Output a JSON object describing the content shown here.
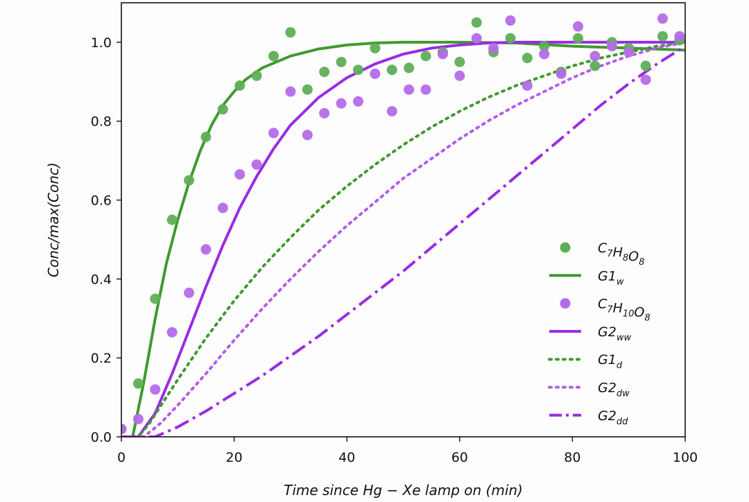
{
  "chart_data": {
    "type": "scatter",
    "xlabel": "Time since Hg − Xe lamp on (min)",
    "ylabel": "Conc/max(Conc)",
    "xlim": [
      0,
      100
    ],
    "ylim": [
      0,
      1.1
    ],
    "xticks": [
      "0",
      "20",
      "40",
      "60",
      "80",
      "100"
    ],
    "yticks": [
      "0.0",
      "0.2",
      "0.4",
      "0.6",
      "0.8",
      "1.0"
    ],
    "grid": false,
    "legend_position": "lower-right",
    "colors": {
      "green": "#3f9a2e",
      "purple": "#9a2be2",
      "green_points": "#5fae57",
      "purple_points": "#b46be8"
    },
    "scatter_series": [
      {
        "label_main": "C",
        "label_parts": [
          [
            "C",
            "7"
          ],
          [
            "H",
            "8"
          ],
          [
            "O",
            "8"
          ]
        ],
        "color": "#5fae57",
        "points": [
          [
            0,
            0.02
          ],
          [
            3,
            0.135
          ],
          [
            6,
            0.35
          ],
          [
            9,
            0.55
          ],
          [
            12,
            0.65
          ],
          [
            15,
            0.76
          ],
          [
            18,
            0.83
          ],
          [
            21,
            0.89
          ],
          [
            24,
            0.915
          ],
          [
            27,
            0.965
          ],
          [
            30,
            1.025
          ],
          [
            33,
            0.88
          ],
          [
            36,
            0.925
          ],
          [
            39,
            0.95
          ],
          [
            42,
            0.93
          ],
          [
            45,
            0.985
          ],
          [
            48,
            0.93
          ],
          [
            51,
            0.935
          ],
          [
            54,
            0.965
          ],
          [
            57,
            0.975
          ],
          [
            60,
            0.95
          ],
          [
            63,
            1.05
          ],
          [
            66,
            0.975
          ],
          [
            69,
            1.01
          ],
          [
            72,
            0.96
          ],
          [
            75,
            0.99
          ],
          [
            78,
            0.925
          ],
          [
            81,
            1.01
          ],
          [
            84,
            0.94
          ],
          [
            87,
            1.0
          ],
          [
            90,
            0.985
          ],
          [
            93,
            0.94
          ],
          [
            96,
            1.015
          ],
          [
            99,
            1.005
          ]
        ]
      },
      {
        "label_parts": [
          [
            "C",
            "7"
          ],
          [
            "H",
            "10"
          ],
          [
            "O",
            "8"
          ]
        ],
        "color": "#b46be8",
        "points": [
          [
            0,
            0.02
          ],
          [
            3,
            0.045
          ],
          [
            6,
            0.12
          ],
          [
            9,
            0.265
          ],
          [
            12,
            0.365
          ],
          [
            15,
            0.475
          ],
          [
            18,
            0.58
          ],
          [
            21,
            0.665
          ],
          [
            24,
            0.69
          ],
          [
            27,
            0.77
          ],
          [
            30,
            0.875
          ],
          [
            33,
            0.765
          ],
          [
            36,
            0.82
          ],
          [
            39,
            0.845
          ],
          [
            42,
            0.85
          ],
          [
            45,
            0.92
          ],
          [
            48,
            0.825
          ],
          [
            51,
            0.88
          ],
          [
            54,
            0.88
          ],
          [
            57,
            0.97
          ],
          [
            60,
            0.915
          ],
          [
            63,
            1.01
          ],
          [
            66,
            0.985
          ],
          [
            69,
            1.055
          ],
          [
            72,
            0.89
          ],
          [
            75,
            0.97
          ],
          [
            78,
            0.92
          ],
          [
            81,
            1.04
          ],
          [
            84,
            0.965
          ],
          [
            87,
            0.99
          ],
          [
            90,
            0.975
          ],
          [
            93,
            0.905
          ],
          [
            96,
            1.06
          ],
          [
            99,
            1.015
          ]
        ]
      }
    ],
    "line_series": [
      {
        "label_base": "G1",
        "label_sub": "w",
        "color": "#3f9a2e",
        "dash": "solid",
        "points": [
          [
            0,
            0.0
          ],
          [
            2,
            0.0
          ],
          [
            4,
            0.14
          ],
          [
            6,
            0.3
          ],
          [
            8,
            0.44
          ],
          [
            10,
            0.55
          ],
          [
            12,
            0.645
          ],
          [
            14,
            0.725
          ],
          [
            16,
            0.79
          ],
          [
            18,
            0.84
          ],
          [
            20,
            0.875
          ],
          [
            22,
            0.905
          ],
          [
            25,
            0.935
          ],
          [
            30,
            0.965
          ],
          [
            35,
            0.983
          ],
          [
            40,
            0.993
          ],
          [
            45,
            0.998
          ],
          [
            50,
            1.0
          ],
          [
            60,
            1.0
          ],
          [
            70,
            0.998
          ],
          [
            80,
            0.99
          ],
          [
            90,
            0.985
          ],
          [
            100,
            0.98
          ]
        ]
      },
      {
        "label_base": "G2",
        "label_sub": "ww",
        "color": "#9a2be2",
        "dash": "solid",
        "points": [
          [
            0,
            0.0
          ],
          [
            3,
            0.0
          ],
          [
            6,
            0.06
          ],
          [
            9,
            0.16
          ],
          [
            12,
            0.27
          ],
          [
            15,
            0.38
          ],
          [
            18,
            0.485
          ],
          [
            21,
            0.58
          ],
          [
            24,
            0.66
          ],
          [
            27,
            0.73
          ],
          [
            30,
            0.79
          ],
          [
            35,
            0.86
          ],
          [
            40,
            0.91
          ],
          [
            45,
            0.945
          ],
          [
            50,
            0.97
          ],
          [
            55,
            0.985
          ],
          [
            60,
            0.993
          ],
          [
            65,
            0.998
          ],
          [
            70,
            1.0
          ],
          [
            80,
            1.0
          ],
          [
            90,
            1.0
          ],
          [
            100,
            1.0
          ]
        ]
      },
      {
        "label_base": "G1",
        "label_sub": "d",
        "color": "#3f9a2e",
        "dash": "dotted",
        "points": [
          [
            0,
            0.0
          ],
          [
            3,
            0.0
          ],
          [
            5,
            0.035
          ],
          [
            10,
            0.145
          ],
          [
            15,
            0.25
          ],
          [
            20,
            0.345
          ],
          [
            25,
            0.43
          ],
          [
            30,
            0.505
          ],
          [
            35,
            0.575
          ],
          [
            40,
            0.635
          ],
          [
            45,
            0.69
          ],
          [
            50,
            0.74
          ],
          [
            55,
            0.785
          ],
          [
            60,
            0.825
          ],
          [
            65,
            0.86
          ],
          [
            70,
            0.89
          ],
          [
            75,
            0.915
          ],
          [
            80,
            0.94
          ],
          [
            85,
            0.96
          ],
          [
            90,
            0.975
          ],
          [
            95,
            0.99
          ],
          [
            100,
            1.0
          ]
        ]
      },
      {
        "label_base": "G2",
        "label_sub": "dw",
        "color": "#b15eea",
        "dash": "dotted",
        "points": [
          [
            0,
            0.0
          ],
          [
            4,
            0.0
          ],
          [
            7,
            0.035
          ],
          [
            10,
            0.08
          ],
          [
            15,
            0.16
          ],
          [
            20,
            0.245
          ],
          [
            25,
            0.325
          ],
          [
            30,
            0.4
          ],
          [
            35,
            0.47
          ],
          [
            40,
            0.535
          ],
          [
            45,
            0.595
          ],
          [
            50,
            0.655
          ],
          [
            55,
            0.705
          ],
          [
            60,
            0.755
          ],
          [
            65,
            0.8
          ],
          [
            70,
            0.84
          ],
          [
            75,
            0.875
          ],
          [
            80,
            0.91
          ],
          [
            85,
            0.94
          ],
          [
            90,
            0.965
          ],
          [
            95,
            0.985
          ],
          [
            100,
            1.0
          ]
        ]
      },
      {
        "label_base": "G2",
        "label_sub": "dd",
        "color": "#9a2be2",
        "dash": "dashdot",
        "points": [
          [
            0,
            0.0
          ],
          [
            6,
            0.0
          ],
          [
            10,
            0.025
          ],
          [
            15,
            0.065
          ],
          [
            20,
            0.11
          ],
          [
            25,
            0.155
          ],
          [
            30,
            0.205
          ],
          [
            35,
            0.255
          ],
          [
            40,
            0.31
          ],
          [
            45,
            0.365
          ],
          [
            50,
            0.42
          ],
          [
            55,
            0.48
          ],
          [
            60,
            0.54
          ],
          [
            65,
            0.6
          ],
          [
            70,
            0.66
          ],
          [
            75,
            0.72
          ],
          [
            80,
            0.78
          ],
          [
            85,
            0.84
          ],
          [
            90,
            0.895
          ],
          [
            95,
            0.945
          ],
          [
            100,
            0.99
          ]
        ]
      }
    ],
    "legend_order": [
      "s0",
      "l0",
      "s1",
      "l1",
      "l2",
      "l3",
      "l4"
    ]
  }
}
